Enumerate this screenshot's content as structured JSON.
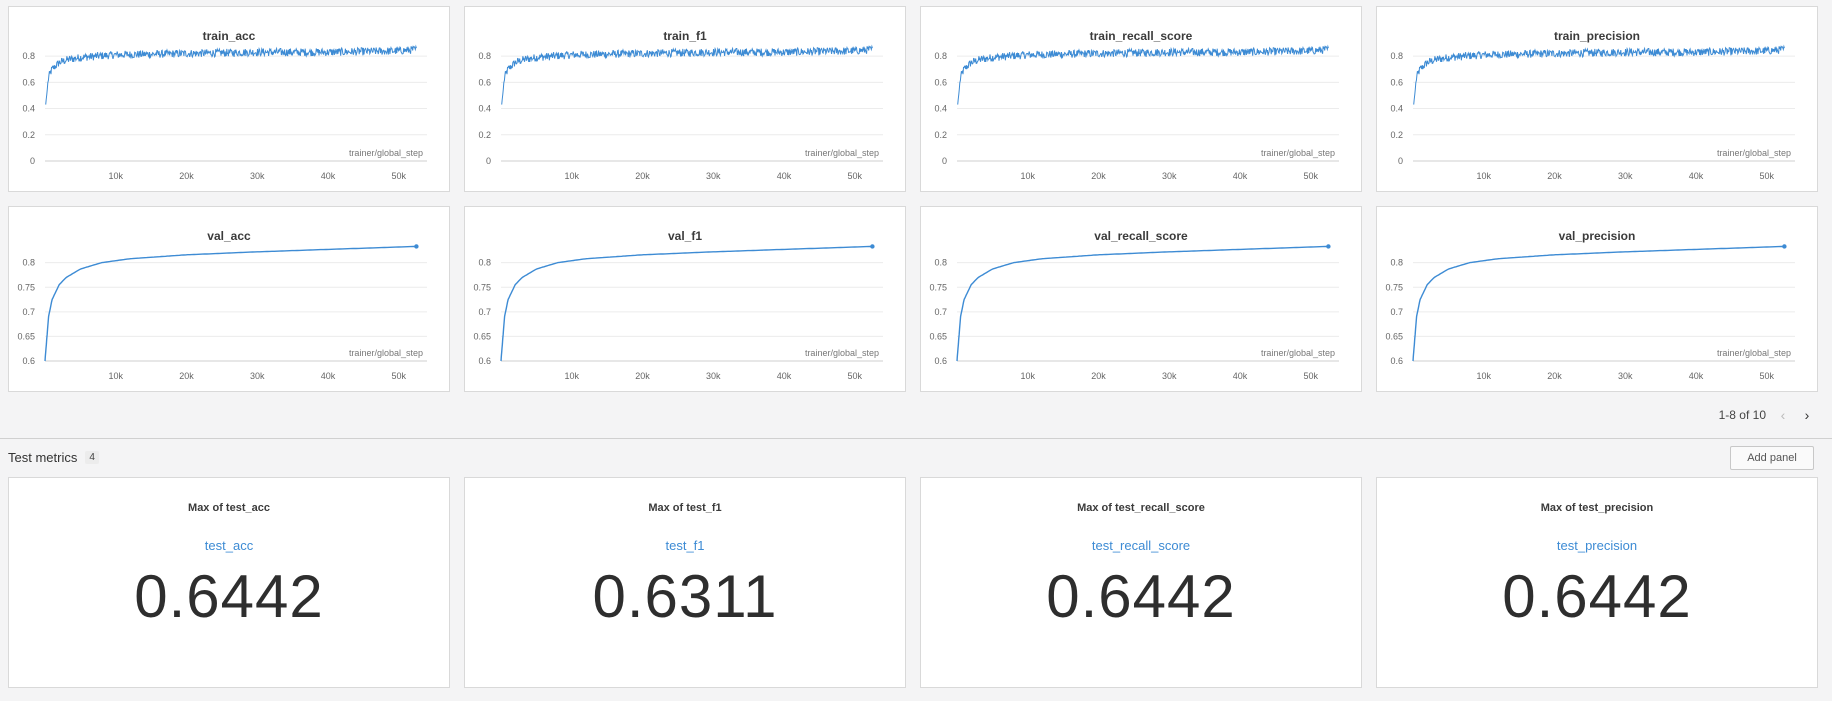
{
  "line_color": "#3d8bd4",
  "x_axis_label": "trainer/global_step",
  "x_ticks": [
    "10k",
    "20k",
    "30k",
    "40k",
    "50k"
  ],
  "chart_data": [
    {
      "type": "line",
      "title": "train_acc",
      "xlabel": "trainer/global_step",
      "ylim": [
        0,
        0.9
      ],
      "yticks": [
        "0",
        "0.2",
        "0.4",
        "0.6",
        "0.8"
      ],
      "xlim": [
        0,
        54000
      ],
      "series": [
        {
          "x": [
            100,
            500,
            1000,
            2000,
            3000,
            5000,
            10000,
            20000,
            30000,
            40000,
            50000,
            52500
          ],
          "values": [
            0.43,
            0.64,
            0.7,
            0.75,
            0.77,
            0.79,
            0.81,
            0.82,
            0.83,
            0.83,
            0.84,
            0.85
          ]
        }
      ],
      "noisy": true
    },
    {
      "type": "line",
      "title": "train_f1",
      "xlabel": "trainer/global_step",
      "ylim": [
        0,
        0.9
      ],
      "yticks": [
        "0",
        "0.2",
        "0.4",
        "0.6",
        "0.8"
      ],
      "xlim": [
        0,
        54000
      ],
      "series": [
        {
          "x": [
            100,
            500,
            1000,
            2000,
            3000,
            5000,
            10000,
            20000,
            30000,
            40000,
            50000,
            52500
          ],
          "values": [
            0.43,
            0.64,
            0.7,
            0.75,
            0.77,
            0.79,
            0.81,
            0.82,
            0.83,
            0.83,
            0.84,
            0.85
          ]
        }
      ],
      "noisy": true
    },
    {
      "type": "line",
      "title": "train_recall_score",
      "xlabel": "trainer/global_step",
      "ylim": [
        0,
        0.9
      ],
      "yticks": [
        "0",
        "0.2",
        "0.4",
        "0.6",
        "0.8"
      ],
      "xlim": [
        0,
        54000
      ],
      "series": [
        {
          "x": [
            100,
            500,
            1000,
            2000,
            3000,
            5000,
            10000,
            20000,
            30000,
            40000,
            50000,
            52500
          ],
          "values": [
            0.43,
            0.64,
            0.7,
            0.75,
            0.77,
            0.79,
            0.81,
            0.82,
            0.83,
            0.83,
            0.84,
            0.85
          ]
        }
      ],
      "noisy": true
    },
    {
      "type": "line",
      "title": "train_precision",
      "xlabel": "trainer/global_step",
      "ylim": [
        0,
        0.9
      ],
      "yticks": [
        "0",
        "0.2",
        "0.4",
        "0.6",
        "0.8"
      ],
      "xlim": [
        0,
        54000
      ],
      "series": [
        {
          "x": [
            100,
            500,
            1000,
            2000,
            3000,
            5000,
            10000,
            20000,
            30000,
            40000,
            50000,
            52500
          ],
          "values": [
            0.43,
            0.64,
            0.7,
            0.75,
            0.77,
            0.79,
            0.81,
            0.82,
            0.83,
            0.83,
            0.84,
            0.85
          ]
        }
      ],
      "noisy": true
    },
    {
      "type": "line",
      "title": "val_acc",
      "xlabel": "trainer/global_step",
      "ylim": [
        0.6,
        0.84
      ],
      "yticks": [
        "0.6",
        "0.65",
        "0.7",
        "0.75",
        "0.8"
      ],
      "xlim": [
        0,
        54000
      ],
      "series": [
        {
          "x": [
            0,
            500,
            1000,
            2000,
            3000,
            5000,
            8000,
            12000,
            20000,
            30000,
            40000,
            52500
          ],
          "values": [
            0.6,
            0.69,
            0.725,
            0.755,
            0.77,
            0.787,
            0.8,
            0.808,
            0.816,
            0.822,
            0.827,
            0.833
          ]
        }
      ],
      "noisy": false
    },
    {
      "type": "line",
      "title": "val_f1",
      "xlabel": "trainer/global_step",
      "ylim": [
        0.6,
        0.84
      ],
      "yticks": [
        "0.6",
        "0.65",
        "0.7",
        "0.75",
        "0.8"
      ],
      "xlim": [
        0,
        54000
      ],
      "series": [
        {
          "x": [
            0,
            500,
            1000,
            2000,
            3000,
            5000,
            8000,
            12000,
            20000,
            30000,
            40000,
            52500
          ],
          "values": [
            0.6,
            0.69,
            0.725,
            0.755,
            0.77,
            0.787,
            0.8,
            0.808,
            0.816,
            0.822,
            0.827,
            0.833
          ]
        }
      ],
      "noisy": false
    },
    {
      "type": "line",
      "title": "val_recall_score",
      "xlabel": "trainer/global_step",
      "ylim": [
        0.6,
        0.84
      ],
      "yticks": [
        "0.6",
        "0.65",
        "0.7",
        "0.75",
        "0.8"
      ],
      "xlim": [
        0,
        54000
      ],
      "series": [
        {
          "x": [
            0,
            500,
            1000,
            2000,
            3000,
            5000,
            8000,
            12000,
            20000,
            30000,
            40000,
            52500
          ],
          "values": [
            0.6,
            0.69,
            0.725,
            0.755,
            0.77,
            0.787,
            0.8,
            0.808,
            0.816,
            0.822,
            0.827,
            0.833
          ]
        }
      ],
      "noisy": false
    },
    {
      "type": "line",
      "title": "val_precision",
      "xlabel": "trainer/global_step",
      "ylim": [
        0.6,
        0.84
      ],
      "yticks": [
        "0.6",
        "0.65",
        "0.7",
        "0.75",
        "0.8"
      ],
      "xlim": [
        0,
        54000
      ],
      "series": [
        {
          "x": [
            0,
            500,
            1000,
            2000,
            3000,
            5000,
            8000,
            12000,
            20000,
            30000,
            40000,
            52500
          ],
          "values": [
            0.6,
            0.69,
            0.725,
            0.755,
            0.77,
            0.787,
            0.8,
            0.808,
            0.816,
            0.822,
            0.827,
            0.833
          ]
        }
      ],
      "noisy": false
    }
  ],
  "pager": {
    "label": "1-8 of 10",
    "prev_icon": "chevron-left-icon",
    "next_icon": "chevron-right-icon"
  },
  "section": {
    "title": "Test metrics",
    "count": "4",
    "add_panel_label": "Add panel"
  },
  "scalars": [
    {
      "title": "Max of test_acc",
      "key": "test_acc",
      "value": "0.6442"
    },
    {
      "title": "Max of test_f1",
      "key": "test_f1",
      "value": "0.6311"
    },
    {
      "title": "Max of test_recall_score",
      "key": "test_recall_score",
      "value": "0.6442"
    },
    {
      "title": "Max of test_precision",
      "key": "test_precision",
      "value": "0.6442"
    }
  ]
}
